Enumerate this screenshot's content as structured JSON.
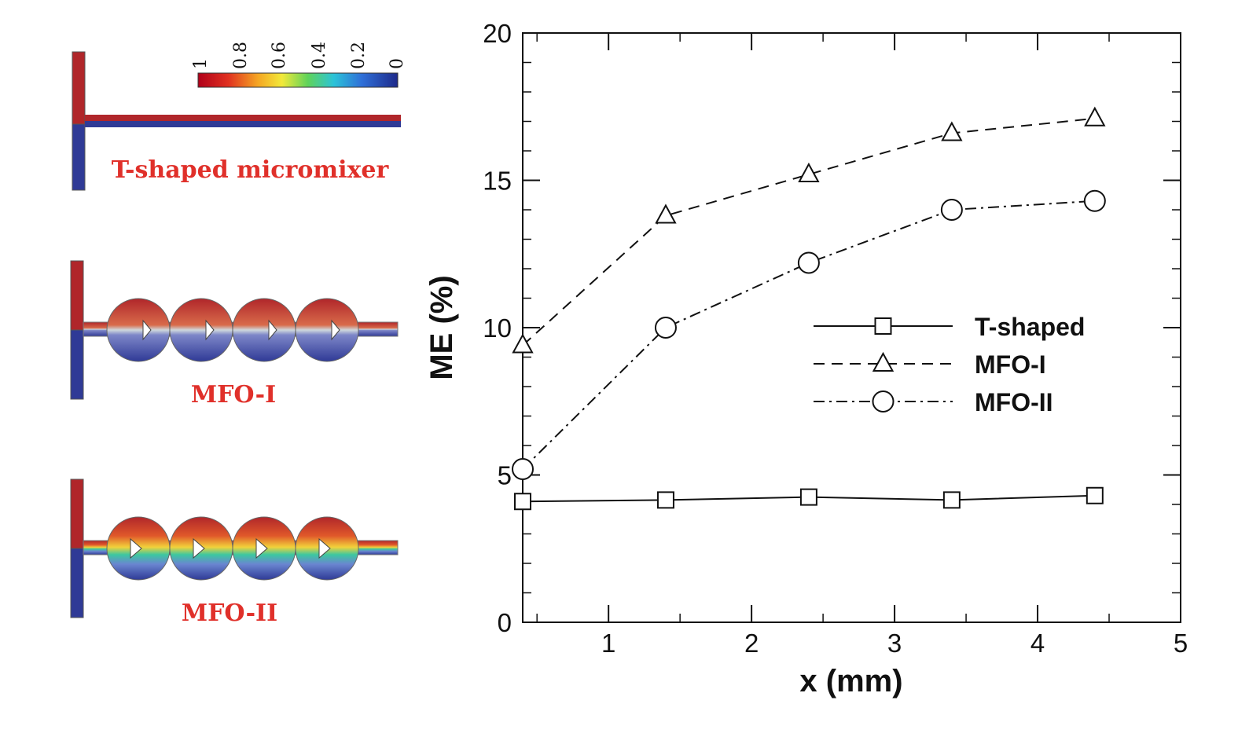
{
  "panels": {
    "colorbar_ticks": [
      "1",
      "0.8",
      "0.6",
      "0.4",
      "0.2",
      "0"
    ],
    "t_shaped_label": "T-shaped micromixer",
    "mfo1_label": "MFO-I",
    "mfo2_label": "MFO-II",
    "colors": {
      "high": "#b0262a",
      "low": "#2f3a96",
      "label": "#e0302a"
    }
  },
  "chart_data": {
    "type": "line",
    "xlabel": "x (mm)",
    "ylabel": "ME (%)",
    "xlim": [
      0.4,
      5
    ],
    "ylim": [
      0,
      20
    ],
    "x_ticks": [
      "1",
      "2",
      "3",
      "4",
      "5"
    ],
    "y_ticks": [
      "0",
      "5",
      "10",
      "15",
      "20"
    ],
    "legend_position": "center-right",
    "series": [
      {
        "name": "T-shaped",
        "marker": "square",
        "dash": "solid",
        "x": [
          0.4,
          1.4,
          2.4,
          3.4,
          4.4
        ],
        "y": [
          4.1,
          4.15,
          4.25,
          4.15,
          4.3
        ]
      },
      {
        "name": "MFO-I",
        "marker": "triangle",
        "dash": "dashed",
        "x": [
          0.4,
          1.4,
          2.4,
          3.4,
          4.4
        ],
        "y": [
          9.4,
          13.8,
          15.2,
          16.6,
          17.1
        ]
      },
      {
        "name": "MFO-II",
        "marker": "circle",
        "dash": "dashdot",
        "x": [
          0.4,
          1.4,
          2.4,
          3.4,
          4.4
        ],
        "y": [
          5.2,
          10.0,
          12.2,
          14.0,
          14.3
        ]
      }
    ]
  }
}
